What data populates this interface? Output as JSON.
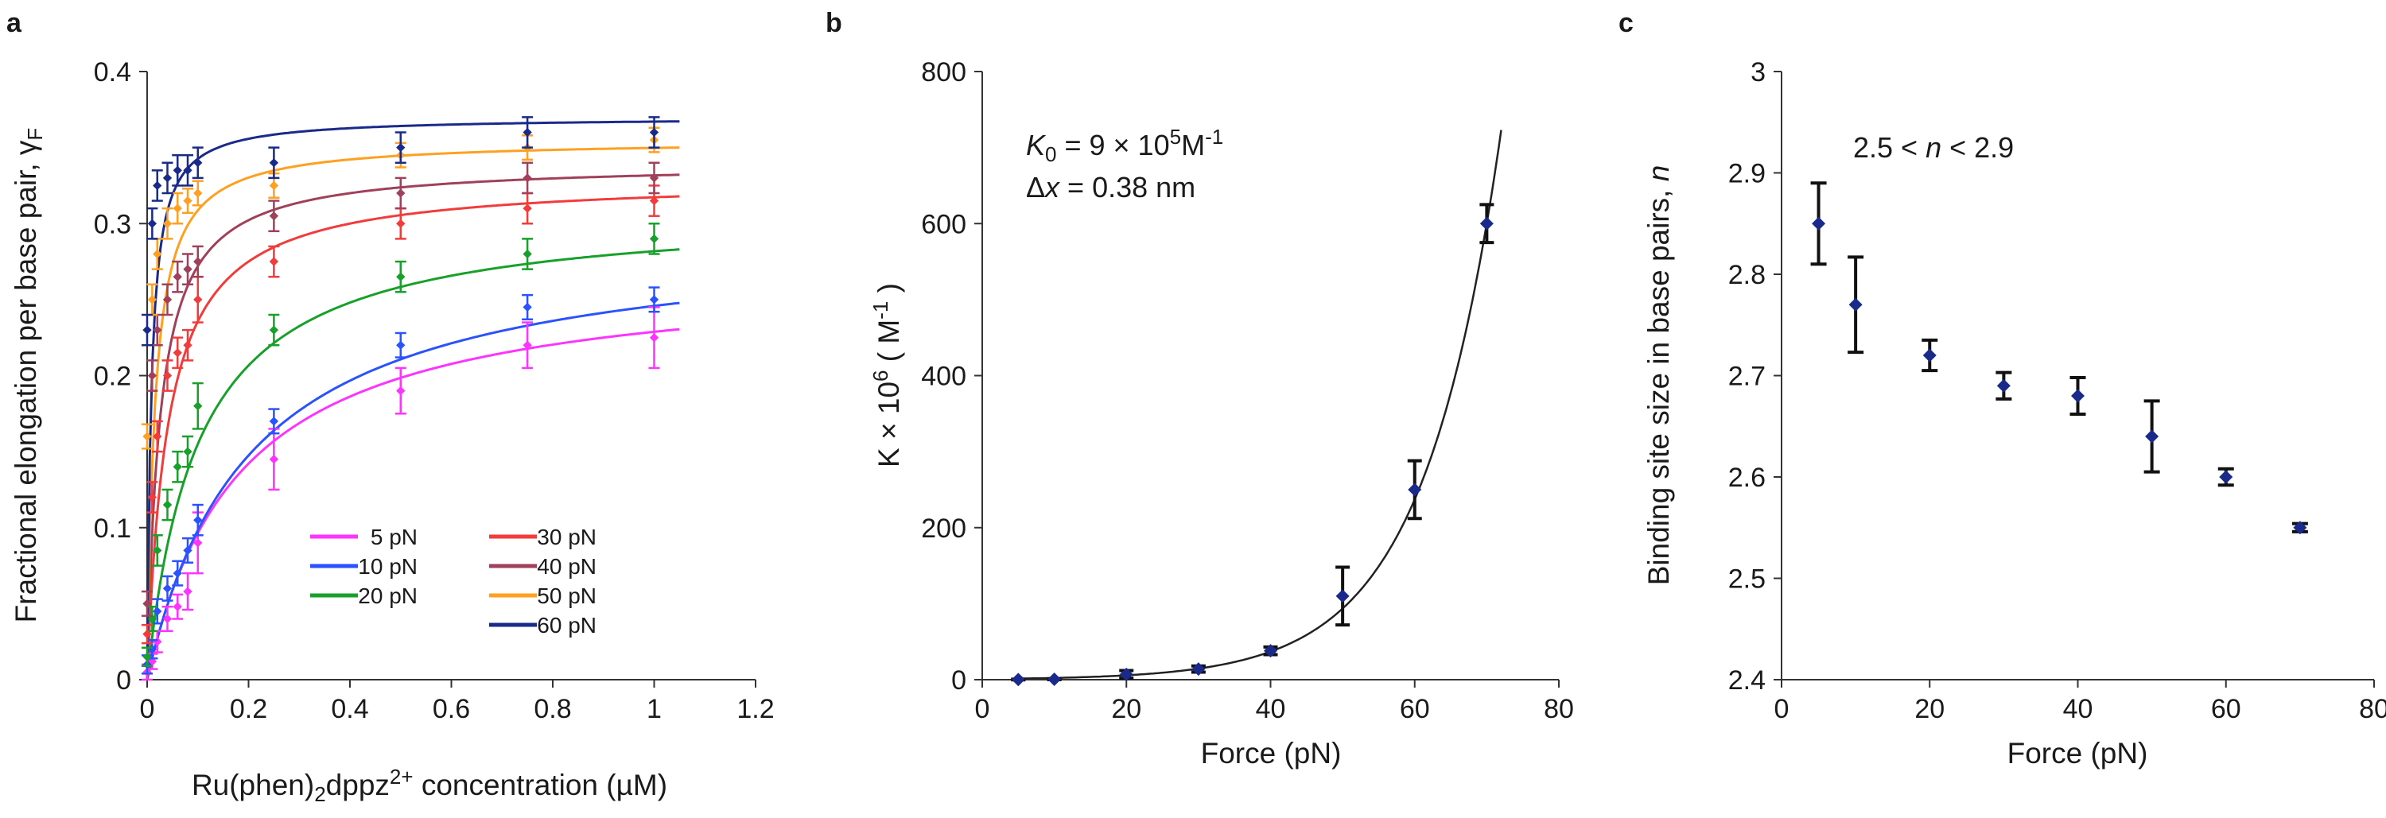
{
  "figure": {
    "panels": [
      "a",
      "b",
      "c"
    ]
  },
  "chart_data": [
    {
      "panel": "a",
      "type": "line",
      "title": "",
      "xlabel": "Ru(phen)2dppz2+ concentration (µM)",
      "ylabel": "Fractional elongation per base pair, γF",
      "xlim": [
        0,
        1.2
      ],
      "ylim": [
        0,
        0.4
      ],
      "xticks": [
        "0",
        "0.2",
        "0.4",
        "0.6",
        "0.8",
        "1",
        "1.2"
      ],
      "yticks": [
        "0",
        "0.1",
        "0.2",
        "0.3",
        "0.4"
      ],
      "x": [
        0,
        0.01,
        0.02,
        0.04,
        0.06,
        0.08,
        0.1,
        0.25,
        0.5,
        0.75,
        1.0
      ],
      "series": [
        {
          "name": "5 pN",
          "color": "#ff33ff",
          "K": 0.18,
          "gmax": 0.27,
          "values": [
            0.005,
            0.012,
            0.025,
            0.04,
            0.048,
            0.058,
            0.09,
            0.145,
            0.19,
            0.22,
            0.225
          ],
          "errors": [
            0.005,
            0.005,
            0.007,
            0.008,
            0.008,
            0.012,
            0.02,
            0.02,
            0.015,
            0.015,
            0.02
          ]
        },
        {
          "name": "10 pN",
          "color": "#2a52ff",
          "K": 0.2,
          "gmax": 0.295,
          "values": [
            0.01,
            0.02,
            0.045,
            0.06,
            0.07,
            0.085,
            0.105,
            0.17,
            0.22,
            0.245,
            0.25
          ],
          "errors": [
            0.006,
            0.006,
            0.008,
            0.008,
            0.008,
            0.008,
            0.01,
            0.008,
            0.008,
            0.008,
            0.008
          ]
        },
        {
          "name": "20 pN",
          "color": "#17a12a",
          "K": 0.1,
          "gmax": 0.31,
          "values": [
            0.015,
            0.04,
            0.085,
            0.115,
            0.14,
            0.15,
            0.18,
            0.23,
            0.265,
            0.28,
            0.29
          ],
          "errors": [
            0.006,
            0.008,
            0.01,
            0.01,
            0.01,
            0.01,
            0.015,
            0.01,
            0.01,
            0.01,
            0.01
          ]
        },
        {
          "name": "30 pN",
          "color": "#f23b3b",
          "K": 0.04,
          "gmax": 0.33,
          "values": [
            0.03,
            0.12,
            0.16,
            0.2,
            0.215,
            0.22,
            0.25,
            0.275,
            0.3,
            0.31,
            0.315
          ],
          "errors": [
            0.006,
            0.01,
            0.01,
            0.01,
            0.01,
            0.01,
            0.015,
            0.01,
            0.01,
            0.01,
            0.01
          ]
        },
        {
          "name": "40 pN",
          "color": "#a0405a",
          "K": 0.025,
          "gmax": 0.34,
          "values": [
            0.05,
            0.2,
            0.23,
            0.25,
            0.265,
            0.27,
            0.275,
            0.305,
            0.32,
            0.33,
            0.33
          ],
          "errors": [
            0.008,
            0.01,
            0.01,
            0.01,
            0.01,
            0.01,
            0.01,
            0.01,
            0.01,
            0.01,
            0.01
          ]
        },
        {
          "name": "50 pN",
          "color": "#ffa020",
          "K": 0.015,
          "gmax": 0.355,
          "values": [
            0.16,
            0.25,
            0.28,
            0.3,
            0.31,
            0.315,
            0.32,
            0.325,
            0.345,
            0.35,
            0.355
          ],
          "errors": [
            0.008,
            0.01,
            0.01,
            0.01,
            0.01,
            0.008,
            0.008,
            0.008,
            0.008,
            0.008,
            0.008
          ]
        },
        {
          "name": "60 pN",
          "color": "#1a2a8a",
          "K": 0.008,
          "gmax": 0.37,
          "values": [
            0.23,
            0.3,
            0.325,
            0.33,
            0.335,
            0.335,
            0.34,
            0.34,
            0.35,
            0.36,
            0.36
          ],
          "errors": [
            0.01,
            0.01,
            0.01,
            0.01,
            0.01,
            0.01,
            0.01,
            0.01,
            0.01,
            0.01,
            0.01
          ]
        }
      ],
      "legend_columns": [
        [
          "5 pN",
          "10 pN",
          "20 pN"
        ],
        [
          "30 pN",
          "40 pN",
          "50 pN",
          "60 pN"
        ]
      ]
    },
    {
      "panel": "b",
      "type": "scatter",
      "title": "",
      "xlabel": "Force (pN)",
      "ylabel": "K × 10^6 ( M^-1 )",
      "ylabel_parts": {
        "base": "K ",
        "times": "× 10",
        "exp": "6",
        "unit_open": " ( M",
        "unit_exp": "-1",
        "unit_close": " )"
      },
      "xlim": [
        0,
        80
      ],
      "ylim": [
        0,
        800
      ],
      "xticks": [
        "0",
        "20",
        "40",
        "60",
        "80"
      ],
      "yticks": [
        "0",
        "200",
        "400",
        "600",
        "800"
      ],
      "x": [
        5,
        10,
        20,
        30,
        40,
        50,
        60,
        70
      ],
      "values": [
        0.2,
        0.5,
        7,
        14,
        38,
        110,
        250,
        600
      ],
      "errors": [
        0.5,
        0.5,
        5,
        4,
        5,
        38,
        38,
        25
      ],
      "fit": {
        "type": "exponential",
        "K0_per_M": 900000,
        "dx_nm": 0.38,
        "amplitude_scaled": 0.9,
        "rate_per_pN": 0.0929
      },
      "annotation": {
        "line1": {
          "sym": "K",
          "sub": "0",
          "eq": " = 9 × 10",
          "exp": "5",
          "unit": "M",
          "unit_exp": "-1"
        },
        "line2": {
          "sym_prefix": "Δ",
          "sym": "x",
          "rest": " = 0.38 nm"
        }
      },
      "color": "#1a2a8a"
    },
    {
      "panel": "c",
      "type": "scatter",
      "title": "",
      "xlabel": "Force (pN)",
      "ylabel": "Binding site size in base pairs, n",
      "ylabel_parts": {
        "text": "Binding site size in base pairs, ",
        "sym": "n"
      },
      "xlim": [
        0,
        80
      ],
      "ylim": [
        2.4,
        3.0
      ],
      "xticks": [
        "0",
        "20",
        "40",
        "60",
        "80"
      ],
      "yticks": [
        "2.4",
        "2.5",
        "2.6",
        "2.7",
        "2.8",
        "2.9",
        "3"
      ],
      "x": [
        5,
        10,
        20,
        30,
        40,
        50,
        60,
        70
      ],
      "values": [
        2.85,
        2.77,
        2.72,
        2.69,
        2.68,
        2.64,
        2.6,
        2.55
      ],
      "errors": [
        0.04,
        0.047,
        0.015,
        0.013,
        0.018,
        0.035,
        0.008,
        0.004
      ],
      "annotation": {
        "left": "2.5 < ",
        "sym": "n",
        "right": " < 2.9"
      },
      "color": "#1a2a8a"
    }
  ]
}
